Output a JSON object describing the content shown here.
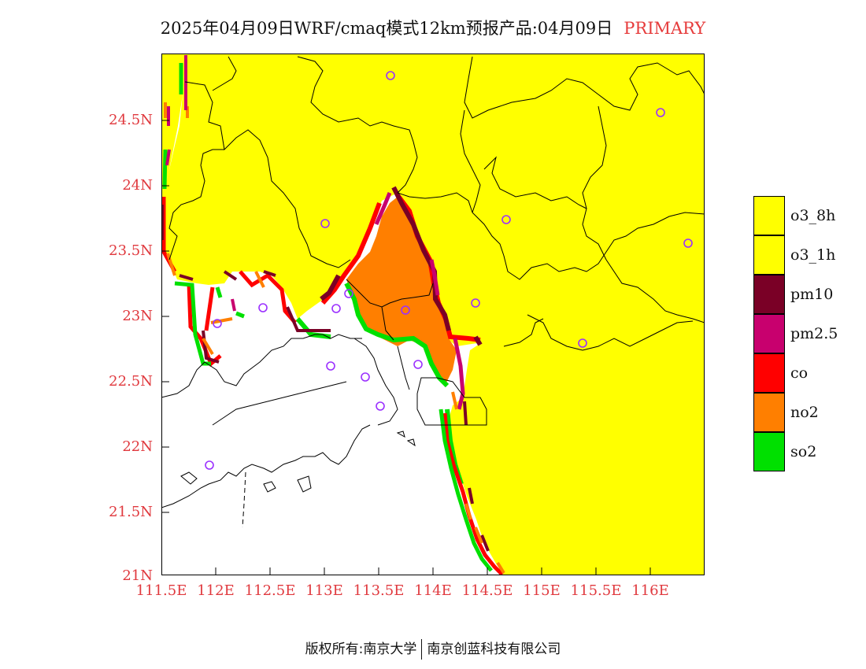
{
  "title": {
    "main": "2025年04月09日WRF/cmaq模式12km预报产品:04月09日",
    "tag": "PRIMARY"
  },
  "map": {
    "lat_labels": [
      "24.5N",
      "24N",
      "23.5N",
      "23N",
      "22.5N",
      "22N",
      "21.5N",
      "21N"
    ],
    "lon_labels": [
      "111.5E",
      "112E",
      "112.5E",
      "113E",
      "113.5E",
      "114E",
      "114.5E",
      "115E",
      "115.5E",
      "116E"
    ],
    "background_color": "#ffff00",
    "sea_color": "#ffffff",
    "pollutant_colors": {
      "o3_8h": "#ffff00",
      "o3_1h": "#ffff00",
      "pm10": "#7a0026",
      "pm2_5": "#c8006e",
      "co": "#ff0000",
      "no2": "#ff7f00",
      "so2": "#00e000"
    },
    "station_marker_color": "#9b30ff",
    "station_count": 17
  },
  "legend": {
    "items": [
      {
        "label": "o3_8h",
        "color": "#ffff00"
      },
      {
        "label": "o3_1h",
        "color": "#ffff00"
      },
      {
        "label": "pm10",
        "color": "#7a0026"
      },
      {
        "label": "pm2.5",
        "color": "#c8006e"
      },
      {
        "label": "co",
        "color": "#ff0000"
      },
      {
        "label": "no2",
        "color": "#ff7f00"
      },
      {
        "label": "so2",
        "color": "#00e000"
      }
    ]
  },
  "footer": {
    "left": "版权所有:南京大学",
    "right": "南京创蓝科技有限公司"
  }
}
